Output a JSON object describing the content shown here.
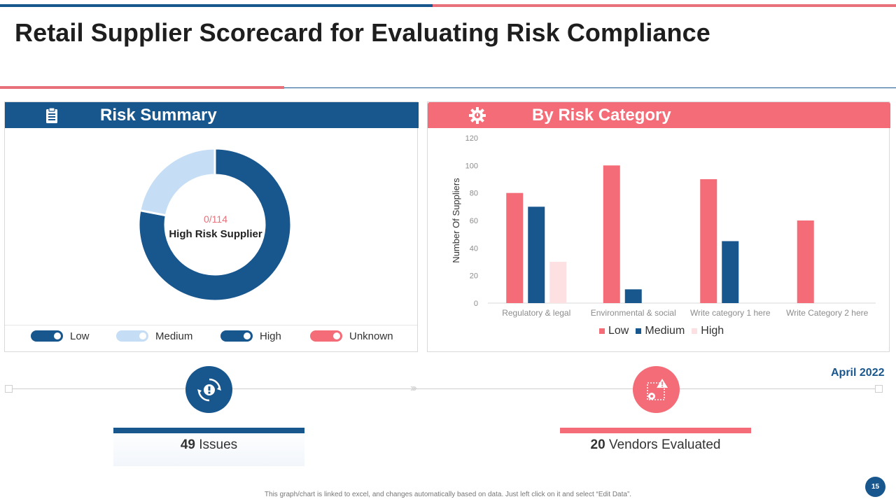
{
  "title": "Retail Supplier Scorecard for Evaluating Risk Compliance",
  "colors": {
    "blue": "#18568e",
    "pink": "#f46c77",
    "light_blue": "#c5def5",
    "light_pink": "#fde0e2"
  },
  "risk_summary": {
    "title": "Risk Summary",
    "icon": "clipboard-icon",
    "center_value": "0/114",
    "center_label": "High Risk Supplier",
    "donut": {
      "segments": [
        {
          "name": "High",
          "value": 78,
          "color": "#18568e"
        },
        {
          "name": "Medium",
          "value": 22,
          "color": "#c5def5"
        }
      ]
    },
    "legend": [
      {
        "label": "Low",
        "color": "#18568e"
      },
      {
        "label": "Medium",
        "color": "#c5def5"
      },
      {
        "label": "High",
        "color": "#18568e"
      },
      {
        "label": "Unknown",
        "color": "#f46c77"
      }
    ]
  },
  "risk_category": {
    "title": "By Risk Category",
    "icon": "gear-icon"
  },
  "chart_data": {
    "type": "bar",
    "categories": [
      "Regulatory & legal",
      "Environmental & social",
      "Write category 1 here",
      "Write Category 2 here"
    ],
    "series": [
      {
        "name": "Low",
        "values": [
          80,
          100,
          90,
          60
        ],
        "color": "#f46c77"
      },
      {
        "name": "Medium",
        "values": [
          70,
          10,
          45,
          0
        ],
        "color": "#18568e"
      },
      {
        "name": "High",
        "values": [
          30,
          0,
          0,
          0
        ],
        "color": "#fde0e2"
      }
    ],
    "ylabel": "Number Of Suppliers",
    "ylim": [
      0,
      120
    ],
    "yticks": [
      0,
      20,
      40,
      60,
      80,
      100,
      120
    ],
    "grid": false,
    "legend": "bottom"
  },
  "timeline": {
    "date": "April 2022",
    "chevrons": "›››",
    "stats": [
      {
        "value": "49",
        "label": "Issues",
        "icon": "gear-alert-icon"
      },
      {
        "value": "20",
        "label": "Vendors Evaluated",
        "icon": "warning-gear-icon"
      }
    ]
  },
  "footer": "This graph/chart is linked to excel, and changes automatically based on data. Just left click on it and select “Edit Data”.",
  "page_number": "15"
}
